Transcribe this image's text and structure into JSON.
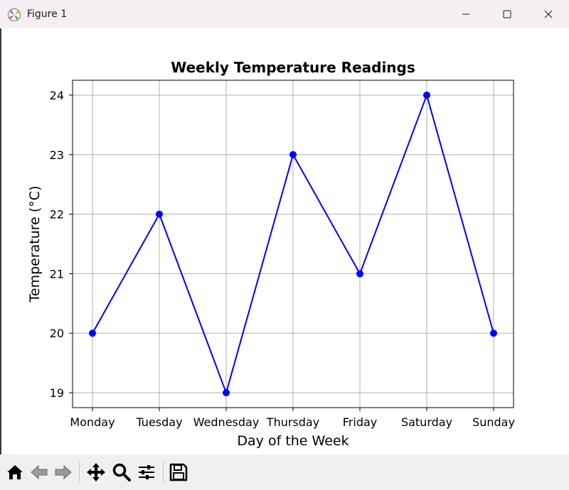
{
  "window": {
    "title": "Figure 1"
  },
  "toolbar": {
    "buttons": [
      "home-icon",
      "back-icon",
      "forward-icon",
      "pan-icon",
      "zoom-icon",
      "configure-subplots-icon",
      "save-icon"
    ]
  },
  "colors": {
    "line": "#0000ff",
    "grid": "#b0b0b0",
    "axes": "#000000",
    "toolbar_bg": "#f0f0f0",
    "titlebar_bg": "#f5eef3"
  },
  "chart_data": {
    "type": "line",
    "title": "Weekly Temperature Readings",
    "xlabel": "Day of the Week",
    "ylabel": "Temperature (°C)",
    "categories": [
      "Monday",
      "Tuesday",
      "Wednesday",
      "Thursday",
      "Friday",
      "Saturday",
      "Sunday"
    ],
    "series": [
      {
        "values": [
          20,
          22,
          19,
          23,
          21,
          24,
          20
        ],
        "marker": "circle",
        "color": "#0000ff"
      }
    ],
    "yticks": [
      "19",
      "20",
      "21",
      "22",
      "23",
      "24"
    ],
    "ylim": [
      18.75,
      24.25
    ],
    "grid": true,
    "legend": "none"
  }
}
